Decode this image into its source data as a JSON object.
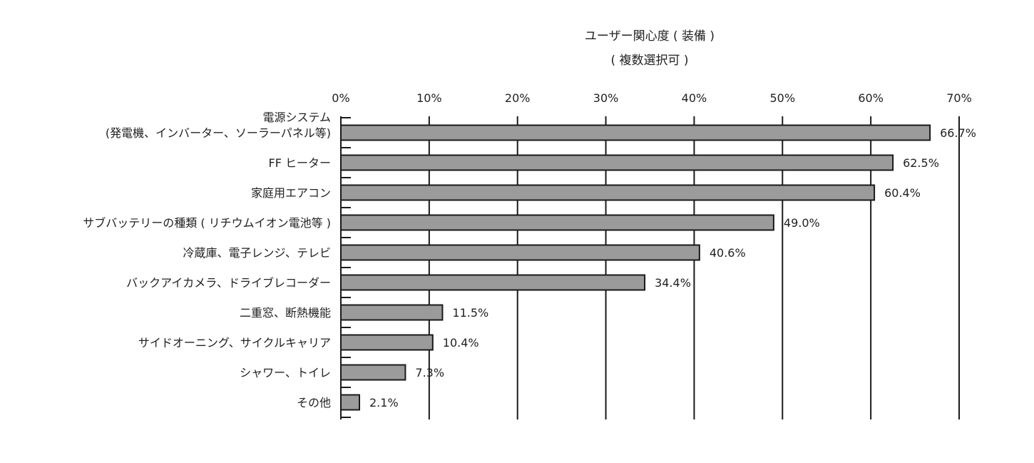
{
  "chart_data": {
    "type": "bar",
    "orientation": "horizontal",
    "title": [
      "ユーザー関心度 ( 装備 )",
      "( 複数選択可 )"
    ],
    "xlabel": "",
    "ylabel": "",
    "xlim": [
      0,
      70
    ],
    "x_ticks": [
      "0%",
      "10%",
      "20%",
      "30%",
      "40%",
      "50%",
      "60%",
      "70%"
    ],
    "grid": "vertical",
    "bar_color": "#9b9b9b",
    "categories": [
      [
        "電源システム",
        "(発電機、インバーター、ソーラーパネル等)"
      ],
      [
        "FF ヒーター"
      ],
      [
        "家庭用エアコン"
      ],
      [
        "サブバッテリーの種類 ( リチウムイオン電池等 )"
      ],
      [
        "冷蔵庫、電子レンジ、テレビ"
      ],
      [
        "バックアイカメラ、ドライブレコーダー"
      ],
      [
        "二重窓、断熱機能"
      ],
      [
        "サイドオーニング、サイクルキャリア"
      ],
      [
        "シャワー、トイレ"
      ],
      [
        "その他"
      ]
    ],
    "values": [
      66.7,
      62.5,
      60.4,
      49.0,
      40.6,
      34.4,
      11.5,
      10.4,
      7.3,
      2.1
    ],
    "value_labels": [
      "66.7%",
      "62.5%",
      "60.4%",
      "49.0%",
      "40.6%",
      "34.4%",
      "11.5%",
      "10.4%",
      "7.3%",
      "2.1%"
    ]
  }
}
